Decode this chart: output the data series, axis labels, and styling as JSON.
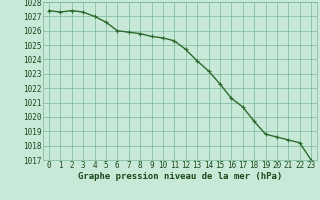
{
  "x": [
    0,
    1,
    2,
    3,
    4,
    5,
    6,
    7,
    8,
    9,
    10,
    11,
    12,
    13,
    14,
    15,
    16,
    17,
    18,
    19,
    20,
    21,
    22,
    23
  ],
  "y": [
    1027.4,
    1027.3,
    1027.4,
    1027.3,
    1027.0,
    1026.6,
    1026.0,
    1025.9,
    1025.8,
    1025.6,
    1025.5,
    1025.3,
    1024.7,
    1023.9,
    1023.2,
    1022.3,
    1021.3,
    1020.7,
    1019.7,
    1018.8,
    1018.6,
    1018.4,
    1018.2,
    1017.0
  ],
  "line_color": "#2d6a2d",
  "marker": "+",
  "marker_color": "#2d6a2d",
  "bg_color": "#c8e8d8",
  "grid_color": "#7ab89a",
  "axis_label_color": "#1a4a1a",
  "tick_label_color": "#1a4a1a",
  "xlabel": "Graphe pression niveau de la mer (hPa)",
  "ylim_min": 1017,
  "ylim_max": 1028,
  "xlim_min": -0.5,
  "xlim_max": 23.5,
  "yticks": [
    1017,
    1018,
    1019,
    1020,
    1021,
    1022,
    1023,
    1024,
    1025,
    1026,
    1027,
    1028
  ],
  "xticks": [
    0,
    1,
    2,
    3,
    4,
    5,
    6,
    7,
    8,
    9,
    10,
    11,
    12,
    13,
    14,
    15,
    16,
    17,
    18,
    19,
    20,
    21,
    22,
    23
  ],
  "linewidth": 1.0,
  "markersize": 3.5,
  "tick_fontsize": 5.5,
  "xlabel_fontsize": 6.5
}
